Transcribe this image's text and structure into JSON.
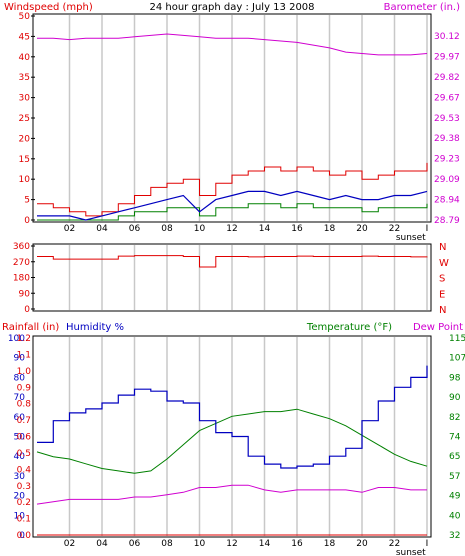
{
  "header": {
    "title": "24 hour graph day : July 13 2008",
    "left_title": "Windspeed (mph)",
    "right_title": "Barometer (in.)"
  },
  "colors": {
    "frame": "#000000",
    "grid": "#c8c8c8",
    "wind_gust": "#e00000",
    "wind_avg": "#0000c0",
    "wind_speed": "#008000",
    "barometer": "#d000d0",
    "direction": "#e00000",
    "humidity": "#0000c0",
    "temperature": "#008000",
    "dewpoint": "#d000d0",
    "rainfall": "#e00000",
    "axis_left": "#e00000",
    "axis_right_top": "#d000d0",
    "axis_right_bottom": "#008000"
  },
  "x_axis": {
    "tick_labels": [
      "02",
      "04",
      "06",
      "08",
      "10",
      "12",
      "14",
      "16",
      "18",
      "20",
      "22",
      "I"
    ],
    "marker_label": "sunset"
  },
  "chart_data": [
    {
      "type": "line",
      "title": "24 hour graph day : July 13 2008",
      "ylabel": "Windspeed (mph)",
      "y2label": "Barometer (in.)",
      "ylim": [
        0,
        50
      ],
      "y2lim": [
        28.79,
        30.26
      ],
      "y_ticks": [
        "0",
        "5",
        "10",
        "15",
        "20",
        "25",
        "30",
        "35",
        "40",
        "45",
        "50"
      ],
      "y2_ticks": [
        "28.79",
        "28.94",
        "29.09",
        "29.23",
        "29.38",
        "29.53",
        "29.67",
        "29.82",
        "29.97",
        "30.12"
      ],
      "x": [
        0,
        1,
        2,
        3,
        4,
        5,
        6,
        7,
        8,
        9,
        10,
        11,
        12,
        13,
        14,
        15,
        16,
        17,
        18,
        19,
        20,
        21,
        22,
        23,
        24
      ],
      "series": [
        {
          "name": "Barometer (in.)",
          "axis": "right",
          "values": [
            30.1,
            30.1,
            30.09,
            30.1,
            30.1,
            30.1,
            30.11,
            30.12,
            30.13,
            30.12,
            30.11,
            30.1,
            30.1,
            30.1,
            30.09,
            30.08,
            30.07,
            30.05,
            30.03,
            30.0,
            29.99,
            29.98,
            29.98,
            29.98,
            29.99
          ]
        },
        {
          "name": "Wind gust",
          "axis": "left",
          "values": [
            4,
            3,
            2,
            1,
            2,
            4,
            6,
            8,
            9,
            10,
            6,
            9,
            11,
            12,
            13,
            12,
            13,
            12,
            11,
            12,
            10,
            11,
            12,
            12,
            14
          ]
        },
        {
          "name": "Wind average",
          "axis": "left",
          "values": [
            1,
            1,
            1,
            0,
            1,
            2,
            3,
            4,
            5,
            6,
            2,
            5,
            6,
            7,
            7,
            6,
            7,
            6,
            5,
            6,
            5,
            5,
            6,
            6,
            7
          ]
        },
        {
          "name": "Wind speed",
          "axis": "left",
          "values": [
            0,
            0,
            0,
            0,
            0,
            1,
            2,
            2,
            3,
            3,
            1,
            3,
            3,
            4,
            4,
            3,
            4,
            3,
            3,
            3,
            2,
            3,
            3,
            3,
            4
          ]
        }
      ]
    },
    {
      "type": "line",
      "ylabel": "Wind direction",
      "ylim": [
        0,
        360
      ],
      "y_ticks": [
        "0",
        "90",
        "180",
        "270",
        "360"
      ],
      "compass_labels": [
        "N",
        "W",
        "S",
        "E",
        "N"
      ],
      "x": [
        0,
        1,
        2,
        3,
        4,
        5,
        6,
        7,
        8,
        9,
        10,
        11,
        12,
        13,
        14,
        15,
        16,
        17,
        18,
        19,
        20,
        21,
        22,
        23,
        24
      ],
      "series": [
        {
          "name": "Wind direction",
          "values": [
            300,
            285,
            285,
            285,
            285,
            302,
            305,
            305,
            305,
            300,
            240,
            300,
            300,
            298,
            300,
            300,
            302,
            300,
            300,
            300,
            302,
            300,
            300,
            298,
            300
          ]
        }
      ]
    },
    {
      "type": "line",
      "ylabel": "Rainfall (in)",
      "ylabel2": "Humidity %",
      "y2label": "Temperature (°F)",
      "y2label2": "Dew Point",
      "ylim": [
        0,
        100
      ],
      "y2lim": [
        32,
        115
      ],
      "rain_ticks": [
        "0.0",
        "0.1",
        "0.2",
        "0.3",
        "0.4",
        "0.5",
        "0.6",
        "0.7",
        "0.8",
        "0.9",
        "1.0",
        "1.1",
        "1.2"
      ],
      "humidity_ticks": [
        "0",
        "10",
        "20",
        "30",
        "40",
        "50",
        "60",
        "70",
        "80",
        "90",
        "100"
      ],
      "y2_ticks": [
        "32",
        "40",
        "49",
        "57",
        "65",
        "74",
        "82",
        "90",
        "98",
        "107",
        "115"
      ],
      "x": [
        0,
        1,
        2,
        3,
        4,
        5,
        6,
        7,
        8,
        9,
        10,
        11,
        12,
        13,
        14,
        15,
        16,
        17,
        18,
        19,
        20,
        21,
        22,
        23,
        24
      ],
      "series": [
        {
          "name": "Humidity %",
          "axis": "left",
          "values": [
            47,
            58,
            62,
            64,
            67,
            71,
            74,
            73,
            68,
            67,
            58,
            52,
            50,
            40,
            36,
            34,
            35,
            36,
            40,
            44,
            58,
            68,
            75,
            80,
            86
          ]
        },
        {
          "name": "Temperature (°F)",
          "axis": "right",
          "values": [
            67,
            65,
            64,
            62,
            60,
            59,
            58,
            59,
            64,
            70,
            76,
            79,
            82,
            83,
            84,
            84,
            85,
            83,
            81,
            78,
            74,
            70,
            66,
            63,
            61
          ]
        },
        {
          "name": "Dew Point",
          "axis": "right",
          "values": [
            45,
            46,
            47,
            47,
            47,
            47,
            48,
            48,
            49,
            50,
            52,
            52,
            53,
            53,
            51,
            50,
            51,
            51,
            51,
            51,
            50,
            52,
            52,
            51,
            51
          ]
        },
        {
          "name": "Rainfall (in)",
          "axis": "left",
          "values": [
            0,
            0,
            0,
            0,
            0,
            0,
            0,
            0,
            0,
            0,
            0,
            0,
            0,
            0,
            0,
            0,
            0,
            0,
            0,
            0,
            0,
            0,
            0,
            0,
            0
          ]
        }
      ]
    }
  ]
}
